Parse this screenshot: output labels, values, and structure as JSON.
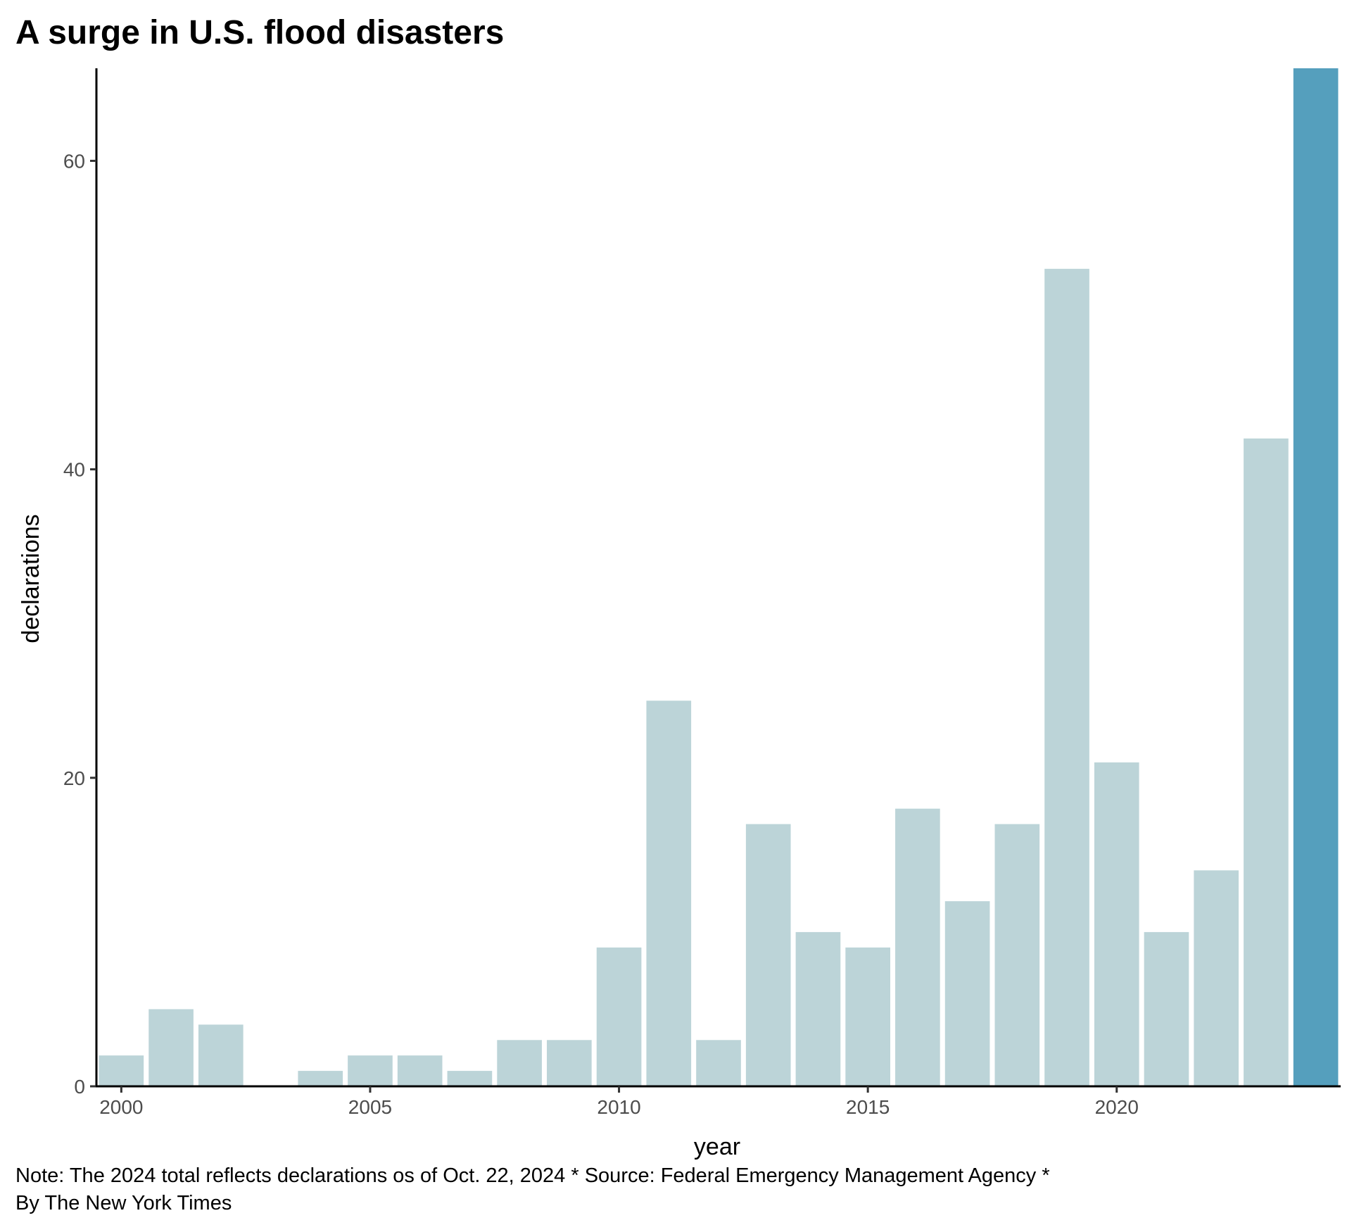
{
  "chart_data": {
    "type": "bar",
    "title": "A surge in U.S. flood disasters",
    "xlabel": "year",
    "ylabel": "declarations",
    "caption_lines": [
      "Note: The 2024 total reflects declarations os of Oct. 22, 2024 * Source: Federal Emergency Management Agency *",
      "By The New York Times"
    ],
    "x": [
      2000,
      2001,
      2002,
      2003,
      2004,
      2005,
      2006,
      2007,
      2008,
      2009,
      2010,
      2011,
      2012,
      2013,
      2014,
      2015,
      2016,
      2017,
      2018,
      2019,
      2020,
      2021,
      2022,
      2023,
      2024
    ],
    "values": [
      2,
      5,
      4,
      0,
      1,
      2,
      2,
      1,
      3,
      3,
      9,
      25,
      3,
      17,
      10,
      9,
      18,
      12,
      17,
      53,
      21,
      10,
      14,
      42,
      66
    ],
    "highlight_year": 2024,
    "colors": {
      "bar": "#bcd4d8",
      "highlight": "#559fbd"
    },
    "ylim": [
      0,
      66
    ],
    "y_ticks": [
      0,
      20,
      40,
      60
    ],
    "x_ticks": [
      2000,
      2005,
      2010,
      2015,
      2020
    ],
    "grid": false,
    "legend": "none"
  }
}
